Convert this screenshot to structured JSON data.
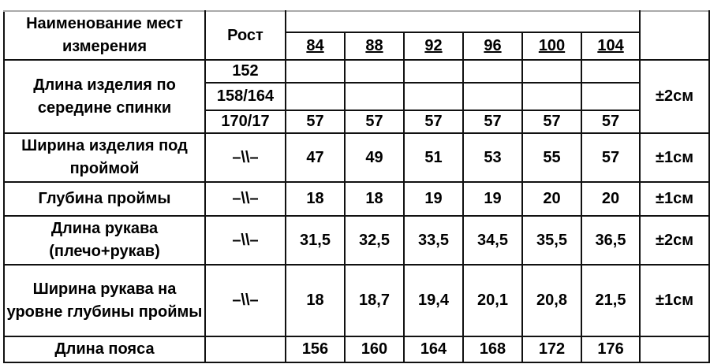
{
  "header": {
    "name_col": "Наименование мест измерения",
    "height_col": "Рост",
    "sizes": [
      "84",
      "88",
      "92",
      "96",
      "100",
      "104"
    ]
  },
  "rows": [
    {
      "name": "Длина изделия по середине спинки",
      "sub": [
        {
          "height": "152",
          "values": [
            "",
            "",
            "",
            "",
            "",
            ""
          ]
        },
        {
          "height": "158/164",
          "values": [
            "",
            "",
            "",
            "",
            "",
            ""
          ]
        },
        {
          "height": "170/17",
          "values": [
            "57",
            "57",
            "57",
            "57",
            "57",
            "57"
          ]
        }
      ],
      "tolerance": "±2см"
    },
    {
      "name": "Ширина изделия под проймой",
      "height": "–\\\\–",
      "values": [
        "47",
        "49",
        "51",
        "53",
        "55",
        "57"
      ],
      "tolerance": "±1см"
    },
    {
      "name": "Глубина проймы",
      "height": "–\\\\–",
      "values": [
        "18",
        "18",
        "19",
        "19",
        "20",
        "20"
      ],
      "tolerance": "±1см"
    },
    {
      "name": "Длина рукава (плечо+рукав)",
      "height": "–\\\\–",
      "values": [
        "31,5",
        "32,5",
        "33,5",
        "34,5",
        "35,5",
        "36,5"
      ],
      "tolerance": "±2см"
    },
    {
      "name": "Ширина рукава на уровне глубины проймы",
      "height": "–\\\\–",
      "values": [
        "18",
        "18,7",
        "19,4",
        "20,1",
        "20,8",
        "21,5"
      ],
      "tolerance": "±1см"
    },
    {
      "name": "Длина пояса",
      "height": "",
      "values": [
        "156",
        "160",
        "164",
        "168",
        "172",
        "176"
      ],
      "tolerance": ""
    }
  ]
}
